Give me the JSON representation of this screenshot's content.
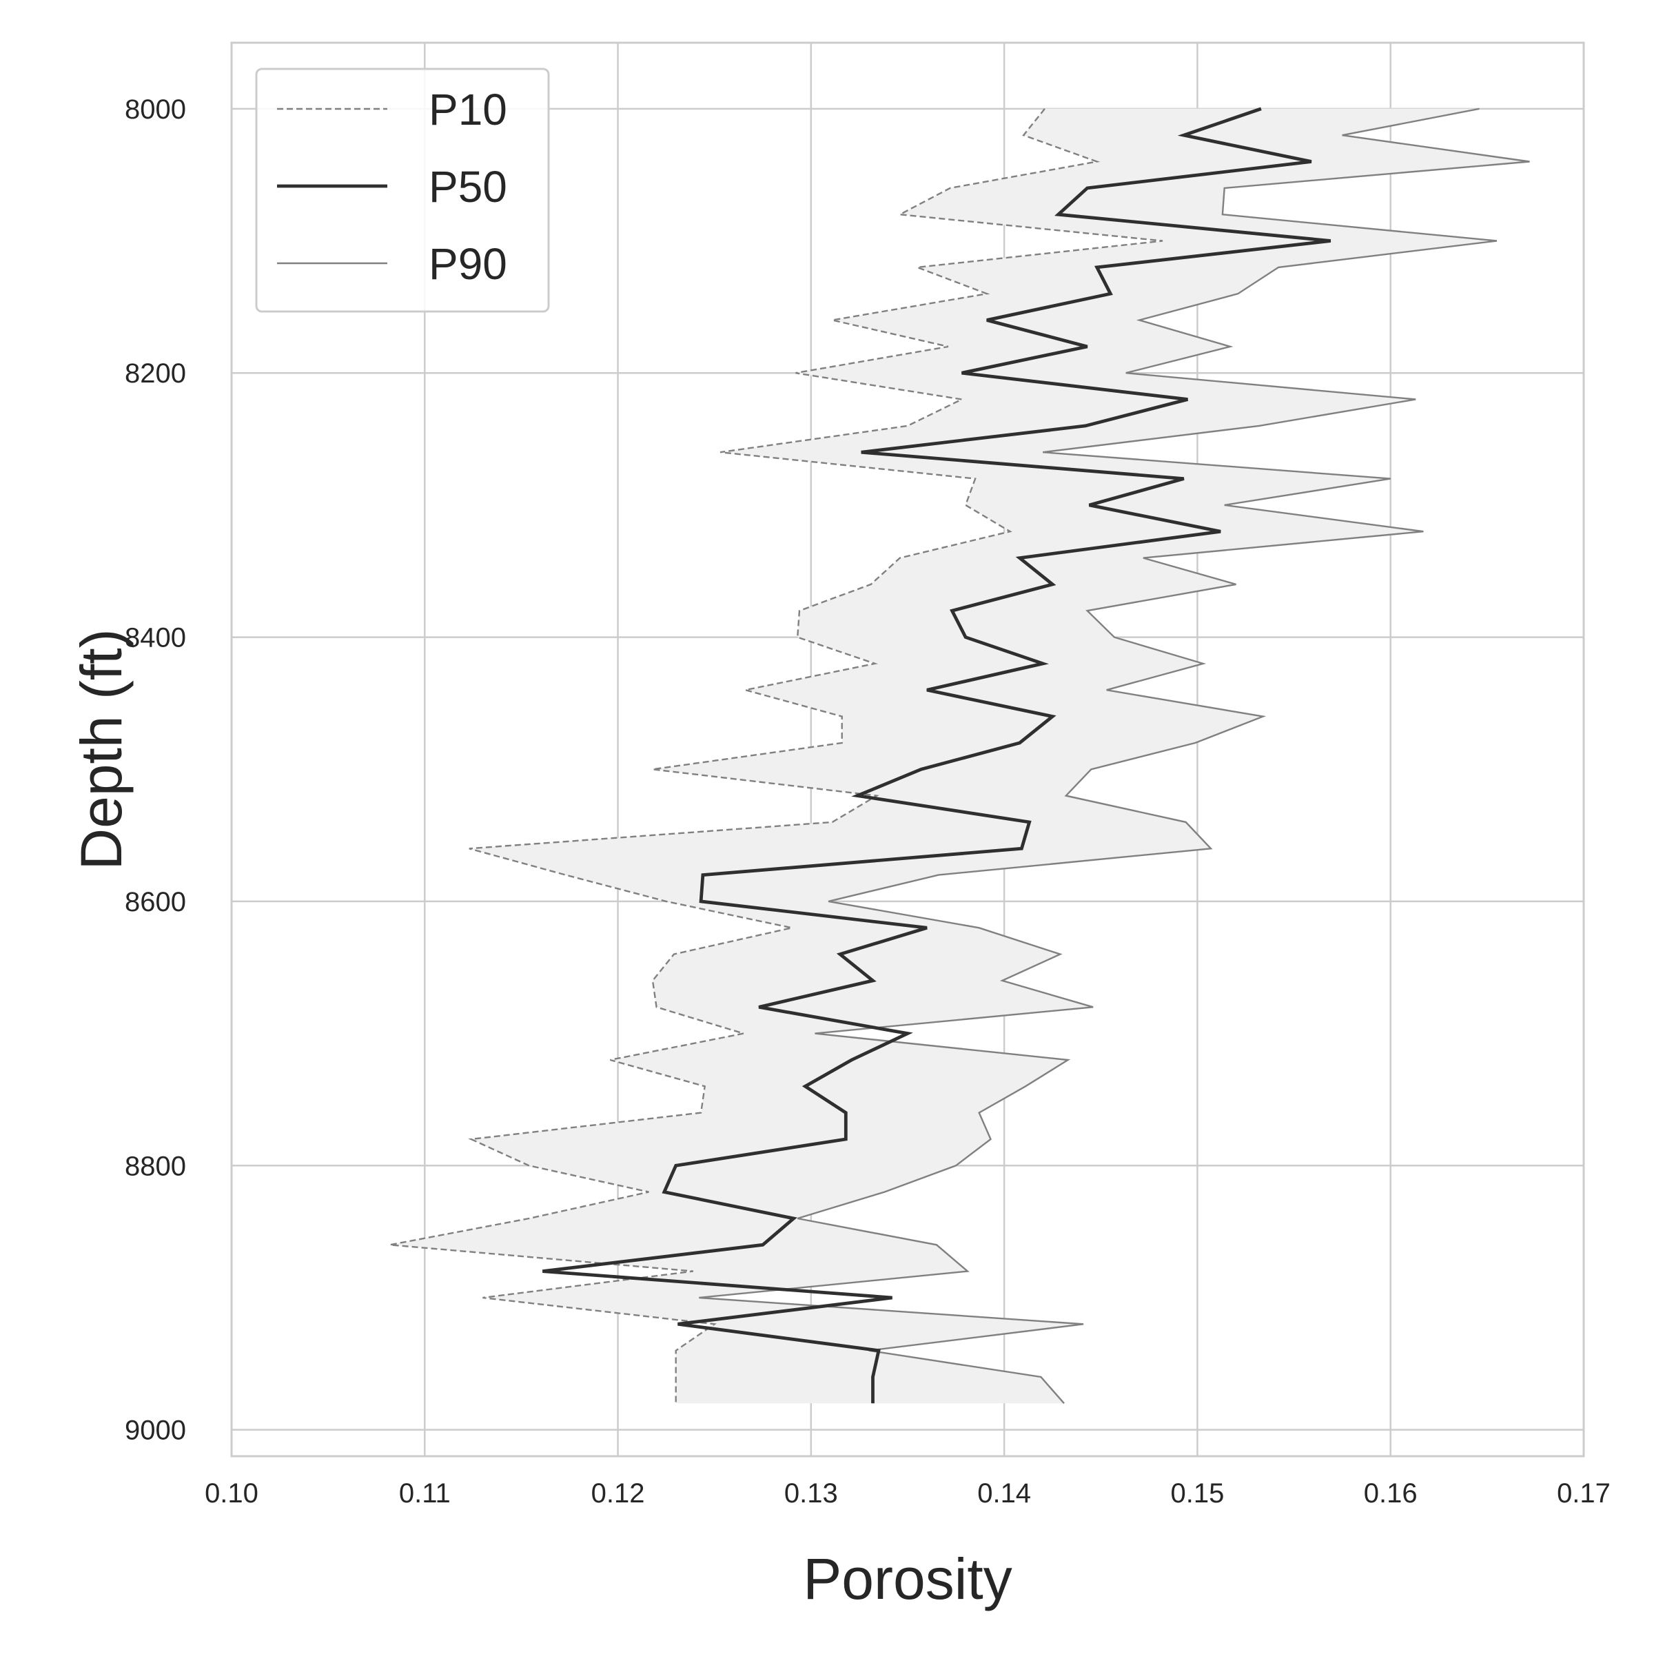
{
  "chart_data": {
    "type": "line",
    "title": "",
    "xlabel": "Porosity",
    "ylabel": "Depth (ft)",
    "xlim": [
      0.1,
      0.17
    ],
    "ylim": [
      9020,
      7950
    ],
    "y_inverted": true,
    "grid": true,
    "legend_position": "top-left",
    "x_ticks": [
      "0.10",
      "0.11",
      "0.12",
      "0.13",
      "0.14",
      "0.15",
      "0.16",
      "0.17"
    ],
    "y_ticks": [
      "8000",
      "8200",
      "8400",
      "8600",
      "8800",
      "9000"
    ],
    "depth": [
      8000,
      8020,
      8040,
      8060,
      8080,
      8100,
      8120,
      8140,
      8160,
      8180,
      8200,
      8220,
      8240,
      8260,
      8280,
      8300,
      8320,
      8340,
      8360,
      8380,
      8400,
      8420,
      8440,
      8460,
      8480,
      8500,
      8520,
      8540,
      8560,
      8580,
      8600,
      8620,
      8640,
      8660,
      8680,
      8700,
      8720,
      8740,
      8760,
      8780,
      8800,
      8820,
      8840,
      8860,
      8880,
      8900,
      8920,
      8940,
      8960,
      8980
    ],
    "shaded_band": {
      "between": [
        "P10",
        "P90"
      ],
      "color": "#f0f0f0"
    },
    "series": [
      {
        "name": "P10",
        "style": "dashed",
        "color": "#808080",
        "values": [
          0.1421,
          0.141,
          0.1448,
          0.1372,
          0.1346,
          0.1482,
          0.1355,
          0.1391,
          0.1311,
          0.1371,
          0.1292,
          0.1378,
          0.135,
          0.1253,
          0.1385,
          0.138,
          0.1403,
          0.1346,
          0.1331,
          0.1294,
          0.1293,
          0.1333,
          0.1266,
          0.1316,
          0.1316,
          0.1218,
          0.1334,
          0.1311,
          0.1123,
          0.1173,
          0.1225,
          0.129,
          0.1229,
          0.1218,
          0.122,
          0.1265,
          0.1196,
          0.1245,
          0.1243,
          0.1124,
          0.1154,
          0.1216,
          0.1154,
          0.1082,
          0.1239,
          0.113,
          0.125,
          0.123,
          0.123,
          0.123
        ]
      },
      {
        "name": "P50",
        "style": "solid",
        "color": "#2f2f2f",
        "values": [
          0.1533,
          0.1493,
          0.1559,
          0.1443,
          0.1428,
          0.1569,
          0.1448,
          0.1455,
          0.1391,
          0.1443,
          0.1378,
          0.1495,
          0.1442,
          0.1326,
          0.1493,
          0.1444,
          0.1512,
          0.1408,
          0.1425,
          0.1373,
          0.138,
          0.142,
          0.136,
          0.1425,
          0.1408,
          0.1357,
          0.1324,
          0.1413,
          0.1409,
          0.1244,
          0.1243,
          0.136,
          0.1315,
          0.1332,
          0.1273,
          0.135,
          0.1321,
          0.1297,
          0.1318,
          0.1318,
          0.123,
          0.1224,
          0.1291,
          0.1275,
          0.1161,
          0.1342,
          0.1231,
          0.1335,
          0.1332,
          0.1332
        ]
      },
      {
        "name": "P90",
        "style": "solid",
        "color": "#808080",
        "values": [
          0.1646,
          0.1575,
          0.1672,
          0.1514,
          0.1513,
          0.1655,
          0.1542,
          0.1521,
          0.147,
          0.1517,
          0.1463,
          0.1613,
          0.1532,
          0.142,
          0.16,
          0.1514,
          0.1617,
          0.1472,
          0.152,
          0.1443,
          0.1457,
          0.1503,
          0.1453,
          0.1534,
          0.1499,
          0.1445,
          0.1432,
          0.1494,
          0.1507,
          0.1366,
          0.1309,
          0.1387,
          0.1429,
          0.1399,
          0.1446,
          0.1302,
          0.1433,
          0.1411,
          0.1387,
          0.1393,
          0.1375,
          0.1338,
          0.1293,
          0.1365,
          0.1381,
          0.1242,
          0.1441,
          0.133,
          0.1419,
          0.1431
        ]
      }
    ]
  }
}
